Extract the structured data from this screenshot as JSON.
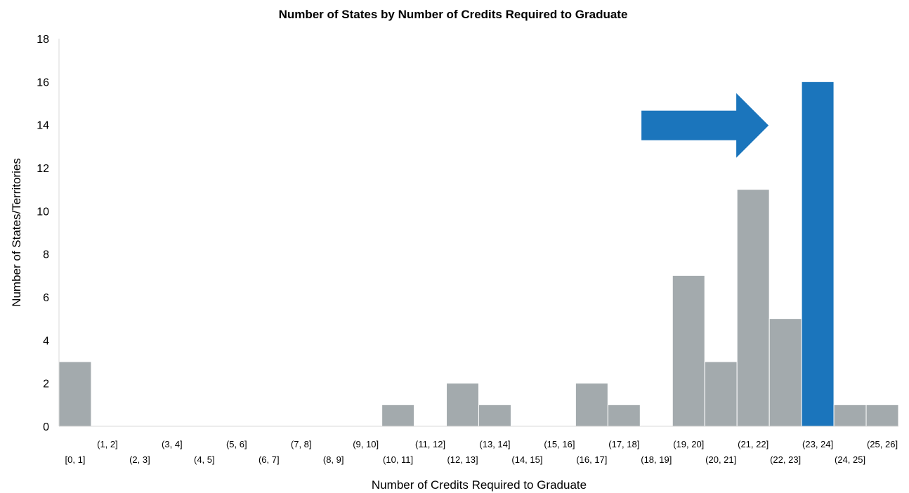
{
  "chart_data": {
    "type": "bar",
    "title": "Number of States by Number of Credits Required to Graduate",
    "xlabel": "Number of Credits Required to Graduate",
    "ylabel": "Number of States/Territories",
    "ylim": [
      0,
      18
    ],
    "yticks": [
      "0",
      "2",
      "4",
      "6",
      "8",
      "10",
      "12",
      "14",
      "16",
      "18"
    ],
    "grid": false,
    "categories": [
      "[0, 1]",
      "(1, 2]",
      "(2, 3]",
      "(3, 4]",
      "(4, 5]",
      "(5, 6]",
      "(6, 7]",
      "(7, 8]",
      "(8, 9]",
      "(9, 10]",
      "(10, 11]",
      "(11, 12]",
      "(12, 13]",
      "(13, 14]",
      "(14, 15]",
      "(15, 16]",
      "(16, 17]",
      "(17, 18]",
      "(18, 19]",
      "(19, 20]",
      "(20, 21]",
      "(21, 22]",
      "(22, 23]",
      "(23, 24]",
      "(24, 25]",
      "(25, 26]"
    ],
    "values": [
      3,
      0,
      0,
      0,
      0,
      0,
      0,
      0,
      0,
      0,
      1,
      0,
      2,
      1,
      0,
      0,
      2,
      1,
      0,
      7,
      3,
      11,
      5,
      16,
      1,
      1
    ],
    "highlight_category": "(23, 24]",
    "colors": {
      "bar": "#a3aaad",
      "highlight": "#1b75bc",
      "arrow": "#1b75bc"
    },
    "annotations": [
      {
        "type": "arrow",
        "direction": "right",
        "points_to": "(23, 24]",
        "value": 14
      }
    ]
  }
}
